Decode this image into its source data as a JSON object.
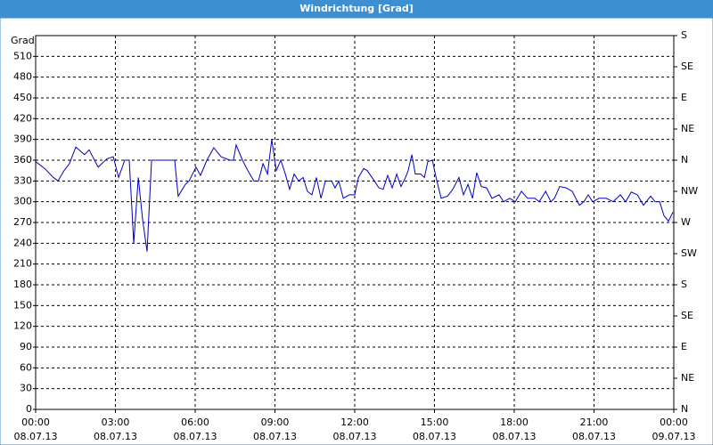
{
  "chart_data": {
    "type": "line",
    "title": "Windrichtung [Grad]",
    "y_label": "Grad",
    "xlim": [
      0,
      24
    ],
    "ylim": [
      0,
      540
    ],
    "y2lim": [
      0,
      540
    ],
    "xticks": [
      {
        "value": 0,
        "label": "00:00\n08.07.13"
      },
      {
        "value": 3,
        "label": "03:00\n08.07.13"
      },
      {
        "value": 6,
        "label": "06:00\n08.07.13"
      },
      {
        "value": 9,
        "label": "09:00\n08.07.13"
      },
      {
        "value": 12,
        "label": "12:00\n08.07.13"
      },
      {
        "value": 15,
        "label": "15:00\n08.07.13"
      },
      {
        "value": 18,
        "label": "18:00\n08.07.13"
      },
      {
        "value": 21,
        "label": "21:00\n08.07.13"
      },
      {
        "value": 24,
        "label": "00:00\n09.07.13"
      }
    ],
    "yticks": [
      0,
      30,
      60,
      90,
      120,
      150,
      180,
      210,
      240,
      270,
      300,
      330,
      360,
      390,
      420,
      450,
      480,
      510
    ],
    "y2ticks": [
      {
        "value": 0,
        "label": "N"
      },
      {
        "value": 45,
        "label": "NE"
      },
      {
        "value": 90,
        "label": "E"
      },
      {
        "value": 135,
        "label": "SE"
      },
      {
        "value": 180,
        "label": "S"
      },
      {
        "value": 225,
        "label": "SW"
      },
      {
        "value": 270,
        "label": "W"
      },
      {
        "value": 315,
        "label": "NW"
      },
      {
        "value": 360,
        "label": "N"
      },
      {
        "value": 405,
        "label": "NE"
      },
      {
        "value": 450,
        "label": "E"
      },
      {
        "value": 495,
        "label": "SE"
      },
      {
        "value": 540,
        "label": "S"
      }
    ],
    "grid": true,
    "series": [
      {
        "color": "#0000c0",
        "x": [
          0,
          0.34,
          0.67,
          0.84,
          1.07,
          1.27,
          1.51,
          1.84,
          2.01,
          2.35,
          2.68,
          2.92,
          3.12,
          3.35,
          3.52,
          3.69,
          3.86,
          4.02,
          4.19,
          4.36,
          5.23,
          5.36,
          5.63,
          5.77,
          6.03,
          6.2,
          6.44,
          6.7,
          6.97,
          7.31,
          7.44,
          7.54,
          7.78,
          7.98,
          8.21,
          8.38,
          8.55,
          8.72,
          8.88,
          9.05,
          9.22,
          9.39,
          9.55,
          9.72,
          9.89,
          10.06,
          10.22,
          10.39,
          10.56,
          10.73,
          10.9,
          11.13,
          11.26,
          11.4,
          11.57,
          11.8,
          12.0,
          12.14,
          12.34,
          12.47,
          12.74,
          12.91,
          13.07,
          13.24,
          13.41,
          13.58,
          13.74,
          13.91,
          14.01,
          14.15,
          14.28,
          14.48,
          14.62,
          14.75,
          14.92,
          15.09,
          15.25,
          15.49,
          15.69,
          15.92,
          16.09,
          16.26,
          16.43,
          16.59,
          16.76,
          16.96,
          17.16,
          17.43,
          17.6,
          17.83,
          18.04,
          18.27,
          18.5,
          18.77,
          18.94,
          19.18,
          19.38,
          19.51,
          19.71,
          19.95,
          20.18,
          20.45,
          20.62,
          20.78,
          20.95,
          21.19,
          21.46,
          21.72,
          21.99,
          22.19,
          22.4,
          22.63,
          22.86,
          23.13,
          23.3,
          23.47,
          23.63,
          23.8,
          23.97
        ],
        "values": [
          358,
          348,
          335,
          330,
          345,
          355,
          379,
          368,
          375,
          350,
          362,
          365,
          335,
          360,
          360,
          240,
          335,
          275,
          228,
          360,
          360,
          308,
          325,
          330,
          350,
          338,
          360,
          378,
          365,
          360,
          360,
          382,
          360,
          345,
          330,
          330,
          355,
          340,
          390,
          345,
          360,
          340,
          318,
          340,
          330,
          335,
          315,
          310,
          335,
          305,
          330,
          330,
          320,
          330,
          305,
          310,
          310,
          335,
          348,
          345,
          330,
          320,
          318,
          338,
          320,
          340,
          322,
          335,
          345,
          368,
          340,
          340,
          335,
          358,
          360,
          330,
          305,
          308,
          318,
          335,
          310,
          325,
          305,
          342,
          322,
          320,
          305,
          310,
          300,
          305,
          300,
          315,
          305,
          305,
          300,
          315,
          300,
          305,
          322,
          320,
          315,
          295,
          300,
          310,
          300,
          305,
          305,
          300,
          310,
          300,
          314,
          310,
          295,
          308,
          300,
          300,
          280,
          272,
          285
        ]
      }
    ]
  }
}
